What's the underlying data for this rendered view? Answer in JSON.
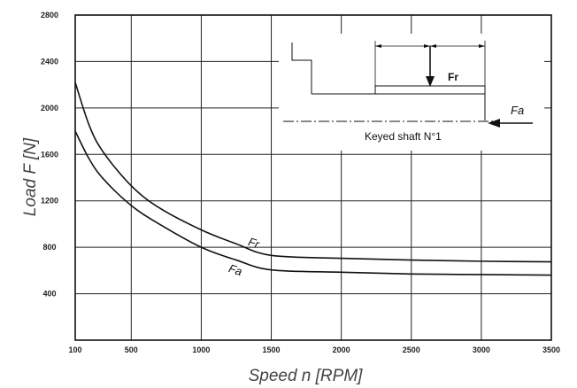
{
  "chart_data": {
    "type": "line",
    "xlabel": "Speed n [RPM]",
    "ylabel": "Load F [N]",
    "xlim": [
      100,
      3500
    ],
    "ylim": [
      0,
      2800
    ],
    "x_ticks": [
      100,
      500,
      1000,
      1500,
      2000,
      2500,
      3000,
      3500
    ],
    "x_tick_labels": [
      "100",
      "500",
      "1000",
      "1500",
      "2000",
      "2500",
      "3000",
      "3500"
    ],
    "y_ticks": [
      400,
      800,
      1200,
      1600,
      2000,
      2400,
      2800
    ],
    "y_tick_labels": [
      "400",
      "800",
      "1200",
      "1600",
      "2000",
      "2400",
      "2800"
    ],
    "grid": true,
    "series": [
      {
        "name": "Fr",
        "x": [
          100,
          200,
          300,
          500,
          700,
          1000,
          1250,
          1500,
          2000,
          2500,
          3000,
          3500
        ],
        "values": [
          2220,
          1850,
          1620,
          1330,
          1140,
          950,
          830,
          730,
          705,
          690,
          680,
          675
        ]
      },
      {
        "name": "Fa",
        "x": [
          100,
          200,
          300,
          500,
          700,
          1000,
          1250,
          1500,
          2000,
          2500,
          3000,
          3500
        ],
        "values": [
          1800,
          1560,
          1390,
          1160,
          1000,
          800,
          690,
          605,
          585,
          570,
          565,
          560
        ]
      }
    ],
    "annotations": [
      {
        "text": "Fr",
        "x": 1330,
        "y": 820
      },
      {
        "text": "Fa",
        "x": 1190,
        "y": 590
      }
    ],
    "inset": {
      "caption": "Keyed shaft N°1",
      "radial_force_label": "Fr",
      "axial_force_label": "Fa"
    }
  }
}
